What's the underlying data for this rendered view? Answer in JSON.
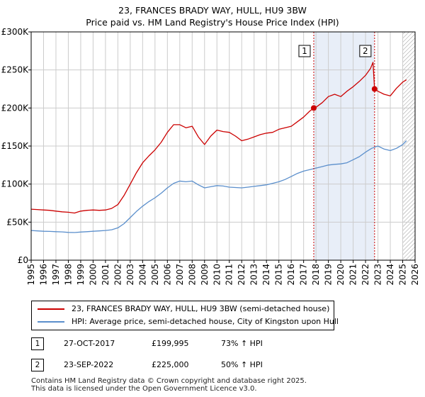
{
  "title_line1": "23, FRANCES BRADY WAY, HULL, HU9 3BW",
  "title_line2": "Price paid vs. HM Land Registry's House Price Index (HPI)",
  "colors": {
    "property": "#cc0000",
    "hpi": "#5b8fcc",
    "shade": "#e8eef8",
    "marker_line": "#cc0000",
    "grid": "#cccccc"
  },
  "chart_data": {
    "type": "line",
    "title": "23, FRANCES BRADY WAY, HULL, HU9 3BW — Price paid vs. HM Land Registry's House Price Index (HPI)",
    "xlabel": "",
    "ylabel": "",
    "xlim": [
      1995,
      2026
    ],
    "ylim": [
      0,
      300000
    ],
    "x_ticks": [
      "1995",
      "1996",
      "1997",
      "1998",
      "1999",
      "2000",
      "2001",
      "2002",
      "2003",
      "2004",
      "2005",
      "2006",
      "2007",
      "2008",
      "2009",
      "2010",
      "2011",
      "2012",
      "2013",
      "2014",
      "2015",
      "2016",
      "2017",
      "2018",
      "2019",
      "2020",
      "2021",
      "2022",
      "2023",
      "2024",
      "2025",
      "2026"
    ],
    "y_ticks": [
      {
        "value": 0,
        "label": "£0"
      },
      {
        "value": 50000,
        "label": "£50K"
      },
      {
        "value": 100000,
        "label": "£100K"
      },
      {
        "value": 150000,
        "label": "£150K"
      },
      {
        "value": 200000,
        "label": "£200K"
      },
      {
        "value": 250000,
        "label": "£250K"
      },
      {
        "value": 300000,
        "label": "£300K"
      }
    ],
    "grid": true,
    "shaded_region": [
      2017.82,
      2022.73
    ],
    "hatched_from": 2025.0,
    "series": [
      {
        "name": "23, FRANCES BRADY WAY, HULL, HU9 3BW (semi-detached house)",
        "color": "#cc0000",
        "x": [
          1995.0,
          1995.5,
          1996.0,
          1996.5,
          1997.0,
          1997.5,
          1998.0,
          1998.5,
          1999.0,
          1999.5,
          2000.0,
          2000.5,
          2001.0,
          2001.5,
          2002.0,
          2002.5,
          2003.0,
          2003.5,
          2004.0,
          2004.5,
          2005.0,
          2005.5,
          2006.0,
          2006.5,
          2007.0,
          2007.5,
          2008.0,
          2008.5,
          2009.0,
          2009.5,
          2010.0,
          2010.5,
          2011.0,
          2011.5,
          2012.0,
          2012.5,
          2013.0,
          2013.5,
          2014.0,
          2014.5,
          2015.0,
          2015.5,
          2016.0,
          2016.5,
          2017.0,
          2017.5,
          2017.82,
          2018.0,
          2018.5,
          2019.0,
          2019.5,
          2020.0,
          2020.5,
          2021.0,
          2021.5,
          2022.0,
          2022.4,
          2022.6,
          2022.73,
          2023.0,
          2023.5,
          2024.0,
          2024.5,
          2025.0,
          2025.3
        ],
        "values": [
          67000,
          66500,
          66000,
          65500,
          64500,
          63500,
          63000,
          62000,
          64500,
          65500,
          66000,
          65500,
          66000,
          68000,
          73000,
          85000,
          100000,
          115000,
          128000,
          137000,
          145000,
          155000,
          168000,
          178000,
          178000,
          174000,
          176000,
          162000,
          152000,
          163000,
          171000,
          169000,
          168000,
          163000,
          157000,
          159000,
          162000,
          165000,
          167000,
          168000,
          172000,
          174000,
          176000,
          182000,
          188000,
          196000,
          199995,
          201000,
          207000,
          215000,
          218000,
          215000,
          222000,
          228000,
          235000,
          243000,
          252000,
          260000,
          225000,
          222000,
          218000,
          216000,
          226000,
          234000,
          237000
        ]
      },
      {
        "name": "HPI: Average price, semi-detached house, City of Kingston upon Hull",
        "color": "#5b8fcc",
        "x": [
          1995.0,
          1995.5,
          1996.0,
          1996.5,
          1997.0,
          1997.5,
          1998.0,
          1998.5,
          1999.0,
          1999.5,
          2000.0,
          2000.5,
          2001.0,
          2001.5,
          2002.0,
          2002.5,
          2003.0,
          2003.5,
          2004.0,
          2004.5,
          2005.0,
          2005.5,
          2006.0,
          2006.5,
          2007.0,
          2007.5,
          2008.0,
          2008.5,
          2009.0,
          2009.5,
          2010.0,
          2010.5,
          2011.0,
          2011.5,
          2012.0,
          2012.5,
          2013.0,
          2013.5,
          2014.0,
          2014.5,
          2015.0,
          2015.5,
          2016.0,
          2016.5,
          2017.0,
          2017.5,
          2018.0,
          2018.5,
          2019.0,
          2019.5,
          2020.0,
          2020.5,
          2021.0,
          2021.5,
          2022.0,
          2022.5,
          2023.0,
          2023.5,
          2024.0,
          2024.5,
          2025.0,
          2025.3
        ],
        "values": [
          39000,
          38500,
          38000,
          37800,
          37500,
          37200,
          36500,
          36300,
          37000,
          37500,
          38000,
          38500,
          39000,
          40000,
          42500,
          48000,
          56000,
          64000,
          71000,
          77000,
          82000,
          88000,
          95000,
          101000,
          104000,
          103000,
          104000,
          99000,
          95000,
          96500,
          98000,
          97500,
          96000,
          95500,
          95000,
          96000,
          97000,
          98000,
          99000,
          101000,
          103000,
          106000,
          110000,
          114000,
          117000,
          119000,
          121000,
          123000,
          125000,
          126000,
          126500,
          128000,
          132000,
          136000,
          142000,
          147000,
          150000,
          146000,
          144000,
          147000,
          152000,
          157000
        ]
      }
    ],
    "sales": [
      {
        "label": "1",
        "x": 2017.82,
        "value": 199995
      },
      {
        "label": "2",
        "x": 2022.73,
        "value": 225000
      }
    ]
  },
  "legend": [
    {
      "label": "23, FRANCES BRADY WAY, HULL, HU9 3BW (semi-detached house)",
      "color": "#cc0000"
    },
    {
      "label": "HPI: Average price, semi-detached house, City of Kingston upon Hull",
      "color": "#5b8fcc"
    }
  ],
  "transactions": [
    {
      "num": "1",
      "date": "27-OCT-2017",
      "price": "£199,995",
      "hpi": "73% ↑ HPI"
    },
    {
      "num": "2",
      "date": "23-SEP-2022",
      "price": "£225,000",
      "hpi": "50% ↑ HPI"
    }
  ],
  "footer_line1": "Contains HM Land Registry data © Crown copyright and database right 2025.",
  "footer_line2": "This data is licensed under the Open Government Licence v3.0."
}
